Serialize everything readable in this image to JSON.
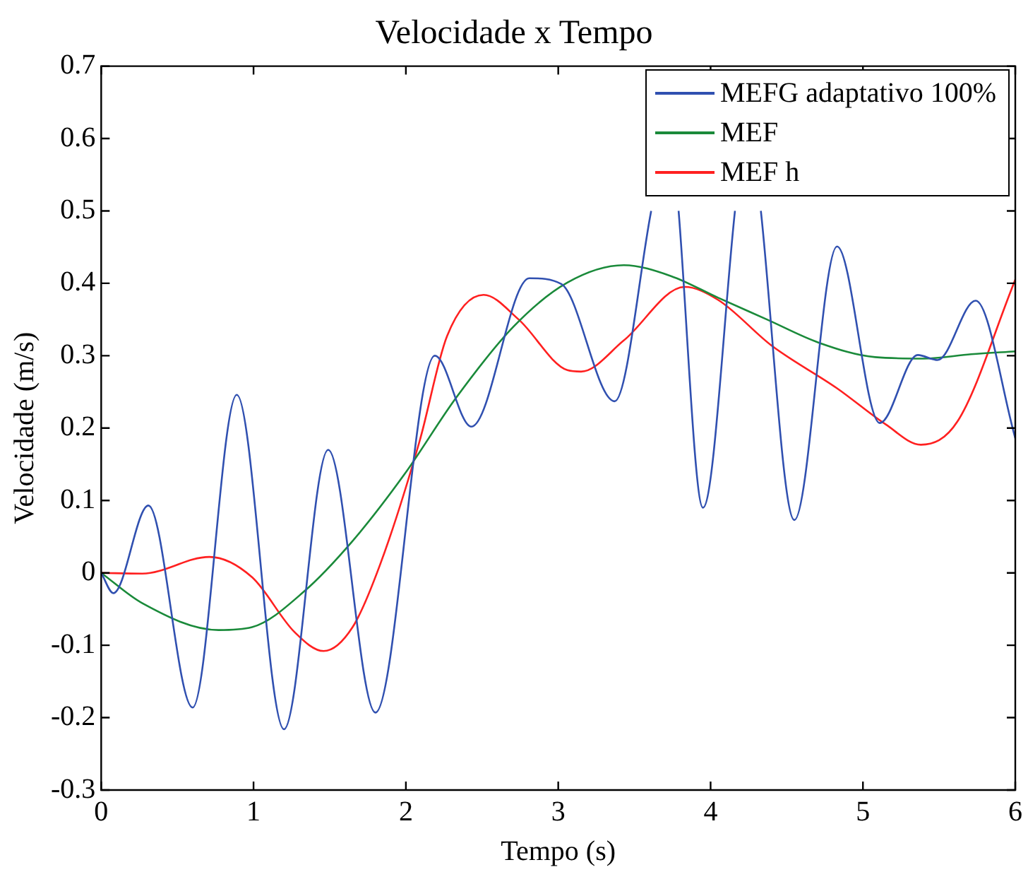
{
  "chart_data": {
    "type": "line",
    "title": "Velocidade x Tempo",
    "xlabel": "Tempo (s)",
    "ylabel": "Velocidade (m/s)",
    "xlim": [
      0,
      6
    ],
    "xticks": [
      0,
      1,
      2,
      3,
      4,
      5,
      6
    ],
    "ylim": [
      -0.3,
      0.7
    ],
    "yticks": [
      -0.3,
      -0.2,
      -0.1,
      0,
      0.1,
      0.2,
      0.3,
      0.4,
      0.5,
      0.6,
      0.7
    ],
    "grid": false,
    "legend": "top right",
    "marker": "none",
    "line_style": "solid",
    "series": [
      {
        "name": "MEFG adaptativo 100%",
        "color": "#3050b0",
        "x": [
          0,
          0.08,
          0.31,
          0.6,
          0.89,
          1.2,
          1.49,
          1.8,
          2.19,
          2.43,
          2.81,
          3.02,
          3.37,
          3.61,
          3.7,
          3.79,
          3.95,
          4.16,
          4.25,
          4.33,
          4.55,
          4.83,
          5.11,
          5.36,
          5.49,
          5.74,
          6.0
        ],
        "values": [
          0,
          -0.028,
          0.093,
          -0.186,
          0.246,
          -0.216,
          0.17,
          -0.193,
          0.3,
          0.202,
          0.407,
          0.399,
          0.237,
          0.5,
          null,
          0.5,
          0.09,
          0.5,
          null,
          0.5,
          0.073,
          0.451,
          0.207,
          0.301,
          0.294,
          0.376,
          0.186
        ]
      },
      {
        "name": "MEF",
        "color": "#1a8a3a",
        "x": [
          0,
          0.27,
          0.77,
          0.99,
          1.33,
          1.65,
          1.99,
          2.33,
          2.71,
          3.06,
          3.43,
          3.74,
          4.05,
          4.37,
          4.71,
          5.08,
          5.4,
          5.71,
          6.0
        ],
        "values": [
          0,
          -0.042,
          -0.079,
          -0.075,
          -0.026,
          0.044,
          0.136,
          0.242,
          0.341,
          0.401,
          0.425,
          0.41,
          0.38,
          0.35,
          0.318,
          0.298,
          0.296,
          0.302,
          0.306
        ]
      },
      {
        "name": "MEF h",
        "color": "#ff2020",
        "x": [
          0,
          0.27,
          0.71,
          0.99,
          1.27,
          1.46,
          1.65,
          1.83,
          2.09,
          2.27,
          2.51,
          2.74,
          3.06,
          3.15,
          3.43,
          3.83,
          4.05,
          4.4,
          4.83,
          5.15,
          5.38,
          5.62,
          6.0
        ],
        "values": [
          0,
          -0.001,
          0.022,
          -0.006,
          -0.082,
          -0.108,
          -0.075,
          0.011,
          0.182,
          0.327,
          0.384,
          0.35,
          0.28,
          0.278,
          0.321,
          0.395,
          0.377,
          0.314,
          0.255,
          0.205,
          0.177,
          0.209,
          0.405
        ]
      }
    ]
  }
}
